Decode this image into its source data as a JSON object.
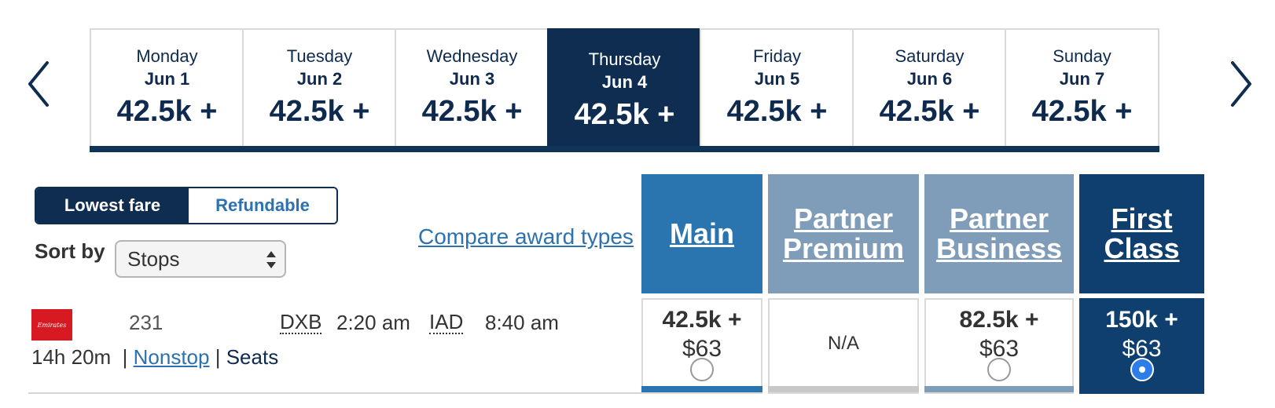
{
  "date_nav": {
    "prev_icon": "chevron-left-icon",
    "next_icon": "chevron-right-icon",
    "days": [
      {
        "day": "Monday",
        "date": "Jun 1",
        "price": "42.5k +",
        "selected": false
      },
      {
        "day": "Tuesday",
        "date": "Jun 2",
        "price": "42.5k +",
        "selected": false
      },
      {
        "day": "Wednesday",
        "date": "Jun 3",
        "price": "42.5k +",
        "selected": false
      },
      {
        "day": "Thursday",
        "date": "Jun 4",
        "price": "42.5k +",
        "selected": true
      },
      {
        "day": "Friday",
        "date": "Jun 5",
        "price": "42.5k +",
        "selected": false
      },
      {
        "day": "Saturday",
        "date": "Jun 6",
        "price": "42.5k +",
        "selected": false
      },
      {
        "day": "Sunday",
        "date": "Jun 7",
        "price": "42.5k +",
        "selected": false
      }
    ]
  },
  "filters": {
    "fare_toggle": {
      "lowest": "Lowest fare",
      "refundable": "Refundable",
      "active": "Lowest fare"
    },
    "sort_label": "Sort by",
    "sort_value": "Stops",
    "compare_link": "Compare award types"
  },
  "cabins": [
    {
      "line1": "Main",
      "line2": "",
      "color": "#2a74b0"
    },
    {
      "line1": "Partner",
      "line2": "Premium",
      "color": "#7f9cb8"
    },
    {
      "line1": "Partner",
      "line2": "Business",
      "color": "#7f9cb8"
    },
    {
      "line1": "First",
      "line2": "Class",
      "color": "#0e3f6e"
    }
  ],
  "flight": {
    "airline_logo_text": "Emirates",
    "number": "231",
    "origin": "DXB",
    "depart": "2:20 am",
    "destination": "IAD",
    "arrive": "8:40 am",
    "duration": "14h 20m",
    "separator": "|",
    "stops": "Nonstop",
    "seats": "Seats",
    "fares": [
      {
        "miles": "42.5k +",
        "tax": "$63",
        "available": true,
        "selected": false,
        "bar_color": "#2a74b0"
      },
      {
        "miles": "",
        "tax": "",
        "na": "N/A",
        "available": false,
        "selected": false,
        "bar_color": "#c8c8c8"
      },
      {
        "miles": "82.5k +",
        "tax": "$63",
        "available": true,
        "selected": false,
        "bar_color": "#7f9cb8"
      },
      {
        "miles": "150k +",
        "tax": "$63",
        "available": true,
        "selected": true,
        "bar_color": "#0e3f6e"
      }
    ]
  }
}
